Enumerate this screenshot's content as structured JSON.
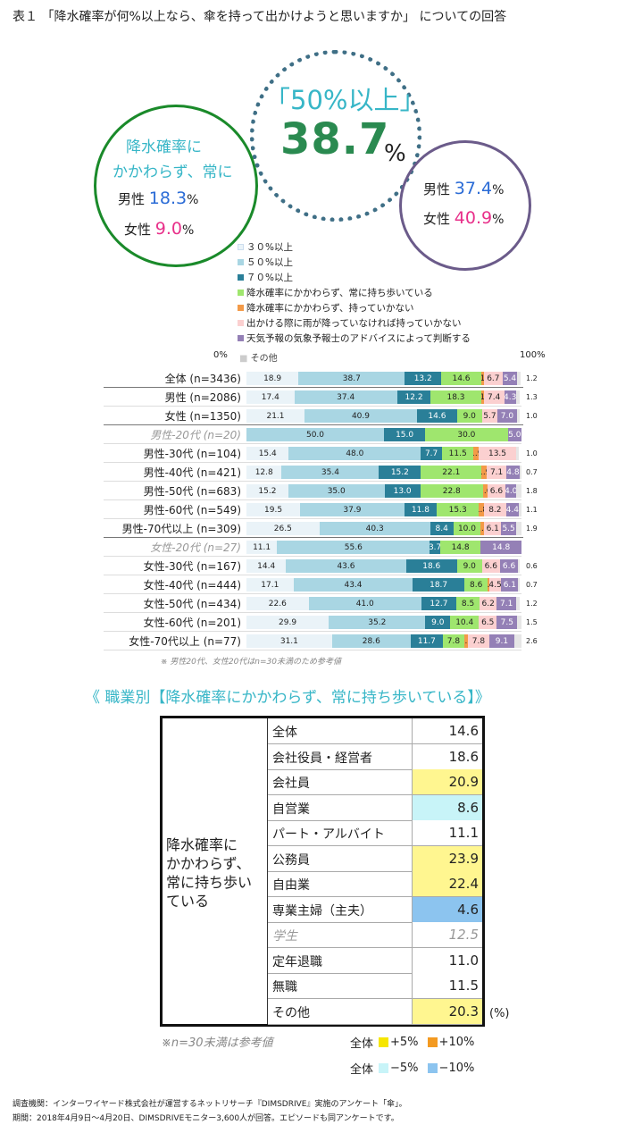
{
  "title": "表１ 「降水確率が何%以上なら、傘を持って出かけようと思いますか」 についての回答",
  "circles": {
    "always": {
      "line1": "降水確率に",
      "line2": "かかわらず、常に",
      "male_label": "男性",
      "male_value": "18.3",
      "female_label": "女性",
      "female_value": "9.0",
      "unit": "%"
    },
    "fifty": {
      "label": "「50%以上」",
      "value": "38.7",
      "unit": "%"
    },
    "ge50": {
      "male_label": "男性",
      "male_value": "37.4",
      "female_label": "女性",
      "female_value": "40.9",
      "unit": "%"
    }
  },
  "colors": {
    "green": "#1a8a2a",
    "cyan": "#37b6c7",
    "blue_num": "#2a6bd6",
    "pink_num": "#e8308a",
    "dark_green_num": "#2a8a50",
    "highlight_yellow": "#fff690",
    "highlight_cyan": "#c8f4f8",
    "highlight_blue": "#8cc4ef",
    "key_yellow": "#f6e600",
    "key_orange": "#f39a21",
    "key_light_cyan": "#c8f4f8",
    "key_blue": "#8cc4ef"
  },
  "chart_data": {
    "type": "bar",
    "orientation": "horizontal-stacked-100",
    "axis": {
      "min_label": "0%",
      "max_label": "100%",
      "other_label": "その他"
    },
    "legend": [
      {
        "label": "３０%以上",
        "color": "#eaf3f8"
      },
      {
        "label": "５０%以上",
        "color": "#a9d6e3"
      },
      {
        "label": "７０%以上",
        "color": "#2a7f98"
      },
      {
        "label": "降水確率にかかわらず、常に持ち歩いている",
        "color": "#9fe66e"
      },
      {
        "label": "降水確率にかかわらず、持っていかない",
        "color": "#f39a48"
      },
      {
        "label": "出かける際に雨が降っていなければ持っていかない",
        "color": "#fbd0d0"
      },
      {
        "label": "天気予報の気象予報士のアドバイスによって判断する",
        "color": "#9480b6"
      }
    ],
    "categories": [
      "全体 (n=3436)",
      "男性 (n=2086)",
      "女性 (n=1350)",
      "男性-20代 (n=20)",
      "男性-30代 (n=104)",
      "男性-40代 (n=421)",
      "男性-50代 (n=683)",
      "男性-60代 (n=549)",
      "男性-70代以上 (n=309)",
      "女性-20代 (n=27)",
      "女性-30代 (n=167)",
      "女性-40代 (n=444)",
      "女性-50代 (n=434)",
      "女性-60代 (n=201)",
      "女性-70代以上 (n=77)"
    ],
    "reference_only": [
      3,
      9
    ],
    "series": [
      {
        "name": "３０%以上",
        "values": [
          18.9,
          17.4,
          21.1,
          0,
          15.4,
          12.8,
          15.2,
          19.5,
          26.5,
          11.1,
          14.4,
          17.1,
          22.6,
          29.9,
          31.1
        ]
      },
      {
        "name": "５０%以上",
        "values": [
          38.7,
          37.4,
          40.9,
          50.0,
          48.0,
          35.4,
          35.0,
          37.9,
          40.3,
          55.6,
          43.6,
          43.4,
          41.0,
          35.2,
          28.6
        ]
      },
      {
        "name": "７０%以上",
        "values": [
          13.2,
          12.2,
          14.6,
          15.0,
          7.7,
          15.2,
          13.0,
          11.8,
          8.4,
          3.7,
          18.6,
          18.7,
          12.7,
          9.0,
          11.7
        ]
      },
      {
        "name": "降水確率にかかわらず、常に持ち歩いている",
        "values": [
          14.6,
          18.3,
          9.0,
          30.0,
          11.5,
          22.1,
          22.8,
          15.3,
          10.0,
          14.8,
          9.0,
          8.6,
          8.5,
          10.4,
          7.8
        ]
      },
      {
        "name": "降水確率にかかわらず、持っていかない",
        "values": [
          1,
          1,
          0,
          0,
          1.9,
          1.9,
          1.6,
          1.8,
          1.3,
          0,
          0,
          0.4,
          0,
          0,
          1.3
        ]
      },
      {
        "name": "出かける際に雨が降っていなければ持っていかない",
        "values": [
          6.7,
          7.4,
          5.7,
          0,
          13.5,
          7.1,
          6.6,
          8.2,
          6.1,
          0,
          6.6,
          4.5,
          6.2,
          6.5,
          7.8
        ]
      },
      {
        "name": "天気予報の気象予報士のアドバイスによって判断する",
        "values": [
          5.4,
          4.3,
          7.0,
          5.0,
          0,
          4.8,
          4.0,
          4.4,
          5.5,
          14.8,
          6.6,
          6.1,
          7.1,
          7.5,
          9.1
        ]
      },
      {
        "name": "その他",
        "values": [
          1.2,
          1.3,
          1.0,
          0,
          1.0,
          0.7,
          1.8,
          1.1,
          1.9,
          0,
          0.6,
          0.7,
          1.2,
          1.5,
          2.6
        ]
      }
    ],
    "segment_labels": [
      [
        "18.9",
        "38.7",
        "13.2",
        "14.6",
        "1",
        "6.7",
        "5.4"
      ],
      [
        "17.4",
        "37.4",
        "12.2",
        "18.3",
        "1",
        "7.4",
        "4.3"
      ],
      [
        "21.1",
        "40.9",
        "14.6",
        "9.0",
        "0",
        "5.7",
        "7.0"
      ],
      [
        "",
        "50.0",
        "15.0",
        "30.0",
        "",
        "",
        "5.0"
      ],
      [
        "15.4",
        "48.0",
        "7.7",
        "11.5",
        "1.9",
        "13.5",
        ""
      ],
      [
        "12.8",
        "35.4",
        "15.2",
        "22.1",
        "1.9",
        "7.1",
        "4.8"
      ],
      [
        "15.2",
        "35.0",
        "13.0",
        "22.8",
        "1.6",
        "6.6",
        "4.0"
      ],
      [
        "19.5",
        "37.9",
        "11.8",
        "15.3",
        "1.8",
        "8.2",
        "4.4"
      ],
      [
        "26.5",
        "40.3",
        "8.4",
        "10.0",
        "1.3",
        "6.1",
        "5.5"
      ],
      [
        "11.1",
        "55.6",
        "3.7",
        "14.8",
        "",
        "",
        "14.8"
      ],
      [
        "14.4",
        "43.6",
        "18.6",
        "9.0",
        "0",
        "6.6",
        "6.6"
      ],
      [
        "17.1",
        "43.4",
        "18.7",
        "8.6",
        "0.4",
        "4.5",
        "6.1"
      ],
      [
        "22.6",
        "41.0",
        "12.7",
        "8.5",
        "0",
        "6.2",
        "7.1"
      ],
      [
        "29.9",
        "35.2",
        "9.0",
        "10.4",
        "",
        "6.5",
        "7.5"
      ],
      [
        "31.1",
        "28.6",
        "11.7",
        "7.8",
        "1.3",
        "7.8",
        "9.1"
      ]
    ],
    "rest_labels": [
      "1.2",
      "1.3",
      "1.0",
      "",
      "1.0",
      "0.7",
      "1.8",
      "1.1",
      "1.9",
      "",
      "0.6",
      "0.7",
      "1.2",
      "1.5",
      "2.6"
    ],
    "note": "※ 男性20代、女性20代はn=30未満のため参考値"
  },
  "occupation": {
    "heading": "《 職業別【降水確率にかかわらず、常に持ち歩いている】》",
    "category_lines": [
      "降水確率に",
      "かかわらず、",
      "常に持ち歩い",
      "ている"
    ],
    "rows": [
      {
        "name": "全体",
        "value": "14.6",
        "highlight": "none",
        "muted": false
      },
      {
        "name": "会社役員・経営者",
        "value": "18.6",
        "highlight": "none",
        "muted": false
      },
      {
        "name": "会社員",
        "value": "20.9",
        "highlight": "yellow",
        "muted": false
      },
      {
        "name": "自営業",
        "value": "8.6",
        "highlight": "cyan",
        "muted": false
      },
      {
        "name": "パート・アルバイト",
        "value": "11.1",
        "highlight": "none",
        "muted": false
      },
      {
        "name": "公務員",
        "value": "23.9",
        "highlight": "yellow",
        "muted": false
      },
      {
        "name": "自由業",
        "value": "22.4",
        "highlight": "yellow",
        "muted": false
      },
      {
        "name": "専業主婦（主夫）",
        "value": "4.6",
        "highlight": "blue",
        "muted": false
      },
      {
        "name": "学生",
        "value": "12.5",
        "highlight": "none",
        "muted": true
      },
      {
        "name": "定年退職",
        "value": "11.0",
        "highlight": "none",
        "muted": false
      },
      {
        "name": "無職",
        "value": "11.5",
        "highlight": "none",
        "muted": false
      },
      {
        "name": "その他",
        "value": "20.3",
        "highlight": "yellow",
        "muted": false
      }
    ],
    "unit": "(%)",
    "note": "※n=30未満は参考値",
    "key_row1": {
      "base": "全体",
      "a": "+5%",
      "b": "+10%"
    },
    "key_row2": {
      "base": "全体",
      "a": "−5%",
      "b": "−10%"
    }
  },
  "source": {
    "line1": "調査機関：インターワイヤード株式会社が運営するネットリサーチ『DIMSDRIVE』実施のアンケート「傘」。",
    "line2": "期間：2018年4月9日～4月20日、DIMSDRIVEモニター3,600人が回答。エピソードも同アンケートです。"
  }
}
